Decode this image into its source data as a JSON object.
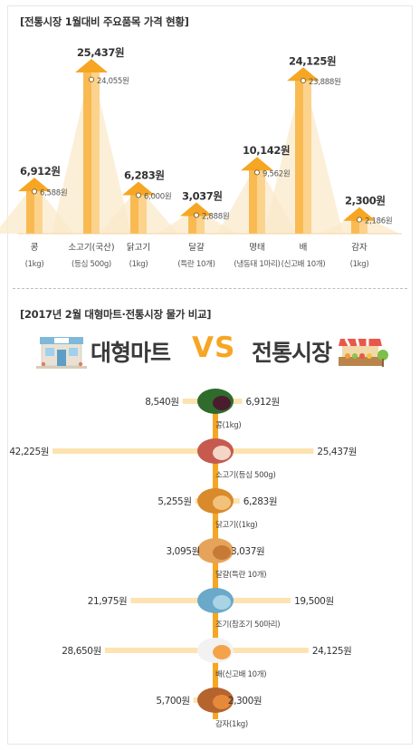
{
  "section1": {
    "title": "[전통시장 1월대비 주요품목 가격 현황]"
  },
  "section2": {
    "title": "[2017년 2월 대형마트·전통시장 물가 비교]",
    "left_label": "대형마트",
    "vs_label": "VS",
    "right_label": "전통시장"
  },
  "colors": {
    "accent": "#f6a623",
    "bar_light": "#fcd38c",
    "tri": "#fbe9cb",
    "bar_h": "#fde3b2",
    "center": "#f6a623"
  },
  "chart_data": [
    {
      "type": "bar",
      "title": "[전통시장 1월대비 주요품목 가격 현황]",
      "categories": [
        {
          "name": "콩",
          "sub": "(1kg)"
        },
        {
          "name": "소고기(국산)",
          "sub": "(등심 500g)"
        },
        {
          "name": "닭고기",
          "sub": "(1kg)"
        },
        {
          "name": "달걀",
          "sub": "(특란 10개)"
        },
        {
          "name": "명태",
          "sub": "(냉동태 1마리)"
        },
        {
          "name": "배",
          "sub": "(신고배 10개)"
        },
        {
          "name": "감자",
          "sub": "(1kg)"
        }
      ],
      "series": [
        {
          "name": "",
          "values": [
            6912,
            25437,
            6283,
            3037,
            10142,
            24125,
            2300
          ],
          "labels": [
            "6,912원",
            "25,437원",
            "6,283원",
            "3,037원",
            "10,142원",
            "24,125원",
            "2,300원"
          ]
        },
        {
          "name": "",
          "values": [
            6588,
            24055,
            6000,
            2888,
            9562,
            23888,
            2186
          ],
          "labels": [
            "6,588원",
            "24,055원",
            "6,000원",
            "2,888원",
            "9,562원",
            "23,888원",
            "2,186원"
          ]
        }
      ]
    },
    {
      "type": "bar",
      "title": "[2017년 2월 대형마트·전통시장 물가 비교]",
      "categories": [
        "콩(1kg)",
        "소고기(등심 500g)",
        "닭고기((1kg)",
        "달걀(특란 10개)",
        "조기(참조기 50마리)",
        "배(신고배 10개)",
        "감자(1kg)"
      ],
      "series": [
        {
          "name": "대형마트",
          "values": [
            8540,
            42225,
            5255,
            3095,
            21975,
            28650,
            5700
          ],
          "labels": [
            "8,540원",
            "42,225원",
            "5,255원",
            "3,095원",
            "21,975원",
            "28,650원",
            "5,700원"
          ]
        },
        {
          "name": "전통시장",
          "values": [
            6912,
            25437,
            6283,
            3037,
            19500,
            24125,
            2300
          ],
          "labels": [
            "6,912원",
            "25,437원",
            "6,283원",
            "3,037원",
            "19,500원",
            "24,125원",
            "2,300원"
          ]
        }
      ]
    }
  ]
}
